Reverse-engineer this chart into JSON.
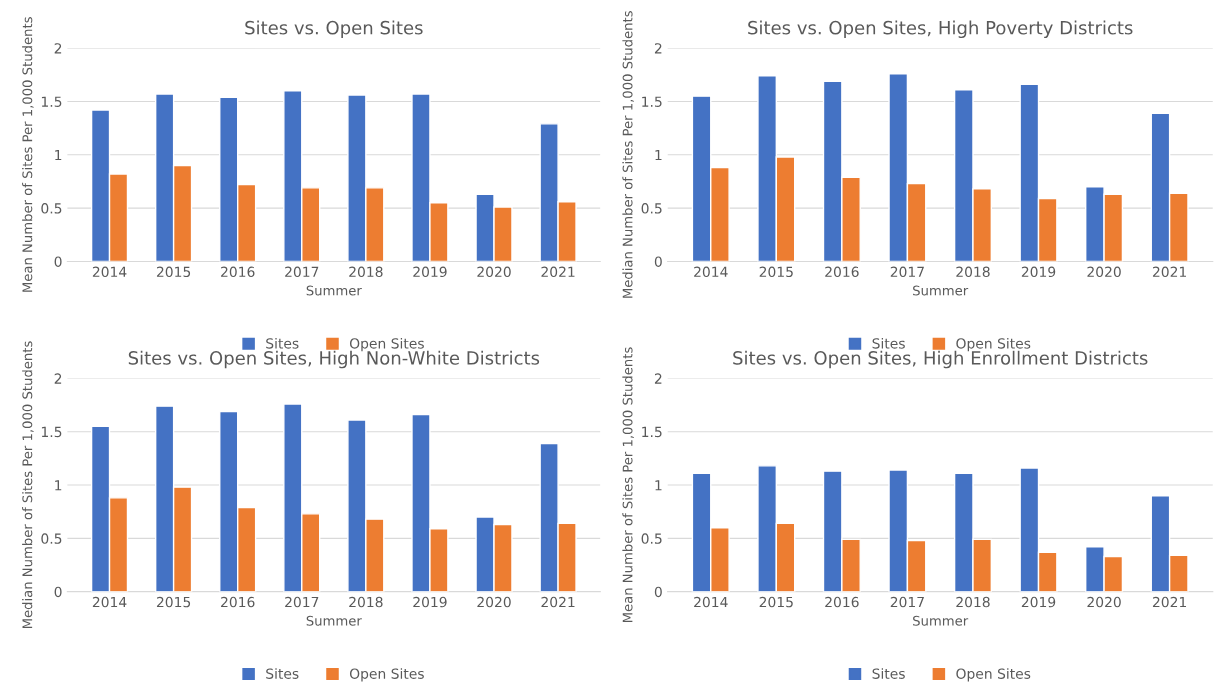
{
  "chart_data": [
    {
      "type": "bar",
      "title": "Sites vs. Open Sites",
      "xlabel": "Summer",
      "ylabel": "Mean Number of Sites Per 1,000 Students",
      "categories": [
        "2014",
        "2015",
        "2016",
        "2017",
        "2018",
        "2019",
        "2020",
        "2021"
      ],
      "ylim": [
        0,
        2
      ],
      "yticks": [
        0,
        0.5,
        1,
        1.5,
        2
      ],
      "grid": "y",
      "legend": "bottom",
      "series": [
        {
          "name": "Sites",
          "color": "#4472c4",
          "values": [
            1.42,
            1.57,
            1.54,
            1.6,
            1.56,
            1.57,
            0.63,
            1.29
          ]
        },
        {
          "name": "Open Sites",
          "color": "#ed7d31",
          "values": [
            0.82,
            0.9,
            0.72,
            0.69,
            0.69,
            0.55,
            0.51,
            0.56
          ]
        }
      ]
    },
    {
      "type": "bar",
      "title": "Sites vs. Open Sites, High Poverty Districts",
      "xlabel": "Summer",
      "ylabel": "Median Number of Sites Per 1,000 Students",
      "categories": [
        "2014",
        "2015",
        "2016",
        "2017",
        "2018",
        "2019",
        "2020",
        "2021"
      ],
      "ylim": [
        0,
        2
      ],
      "yticks": [
        0,
        0.5,
        1,
        1.5,
        2
      ],
      "grid": "y",
      "legend": "bottom",
      "series": [
        {
          "name": "Sites",
          "color": "#4472c4",
          "values": [
            1.55,
            1.74,
            1.69,
            1.76,
            1.61,
            1.66,
            0.7,
            1.39
          ]
        },
        {
          "name": "Open Sites",
          "color": "#ed7d31",
          "values": [
            0.88,
            0.98,
            0.79,
            0.73,
            0.68,
            0.59,
            0.63,
            0.64
          ]
        }
      ]
    },
    {
      "type": "bar",
      "title": "Sites vs. Open Sites, High Non-White Districts",
      "xlabel": "Summer",
      "ylabel": "Median Number of Sites Per 1,000 Students",
      "categories": [
        "2014",
        "2015",
        "2016",
        "2017",
        "2018",
        "2019",
        "2020",
        "2021"
      ],
      "ylim": [
        0,
        2
      ],
      "yticks": [
        0,
        0.5,
        1,
        1.5,
        2
      ],
      "grid": "y",
      "legend": "bottom",
      "series": [
        {
          "name": "Sites",
          "color": "#4472c4",
          "values": [
            1.55,
            1.74,
            1.69,
            1.76,
            1.61,
            1.66,
            0.7,
            1.39
          ]
        },
        {
          "name": "Open Sites",
          "color": "#ed7d31",
          "values": [
            0.88,
            0.98,
            0.79,
            0.73,
            0.68,
            0.59,
            0.63,
            0.64
          ]
        }
      ]
    },
    {
      "type": "bar",
      "title": "Sites vs. Open Sites, High Enrollment Districts",
      "xlabel": "Summer",
      "ylabel": "Mean Number of Sites Per 1,000 Students",
      "categories": [
        "2014",
        "2015",
        "2016",
        "2017",
        "2018",
        "2019",
        "2020",
        "2021"
      ],
      "ylim": [
        0,
        2
      ],
      "yticks": [
        0,
        0.5,
        1,
        1.5,
        2
      ],
      "grid": "y",
      "legend": "bottom",
      "series": [
        {
          "name": "Sites",
          "color": "#4472c4",
          "values": [
            1.11,
            1.18,
            1.13,
            1.14,
            1.11,
            1.16,
            0.42,
            0.9
          ]
        },
        {
          "name": "Open Sites",
          "color": "#ed7d31",
          "values": [
            0.6,
            0.64,
            0.49,
            0.48,
            0.49,
            0.37,
            0.33,
            0.34
          ]
        }
      ]
    }
  ]
}
